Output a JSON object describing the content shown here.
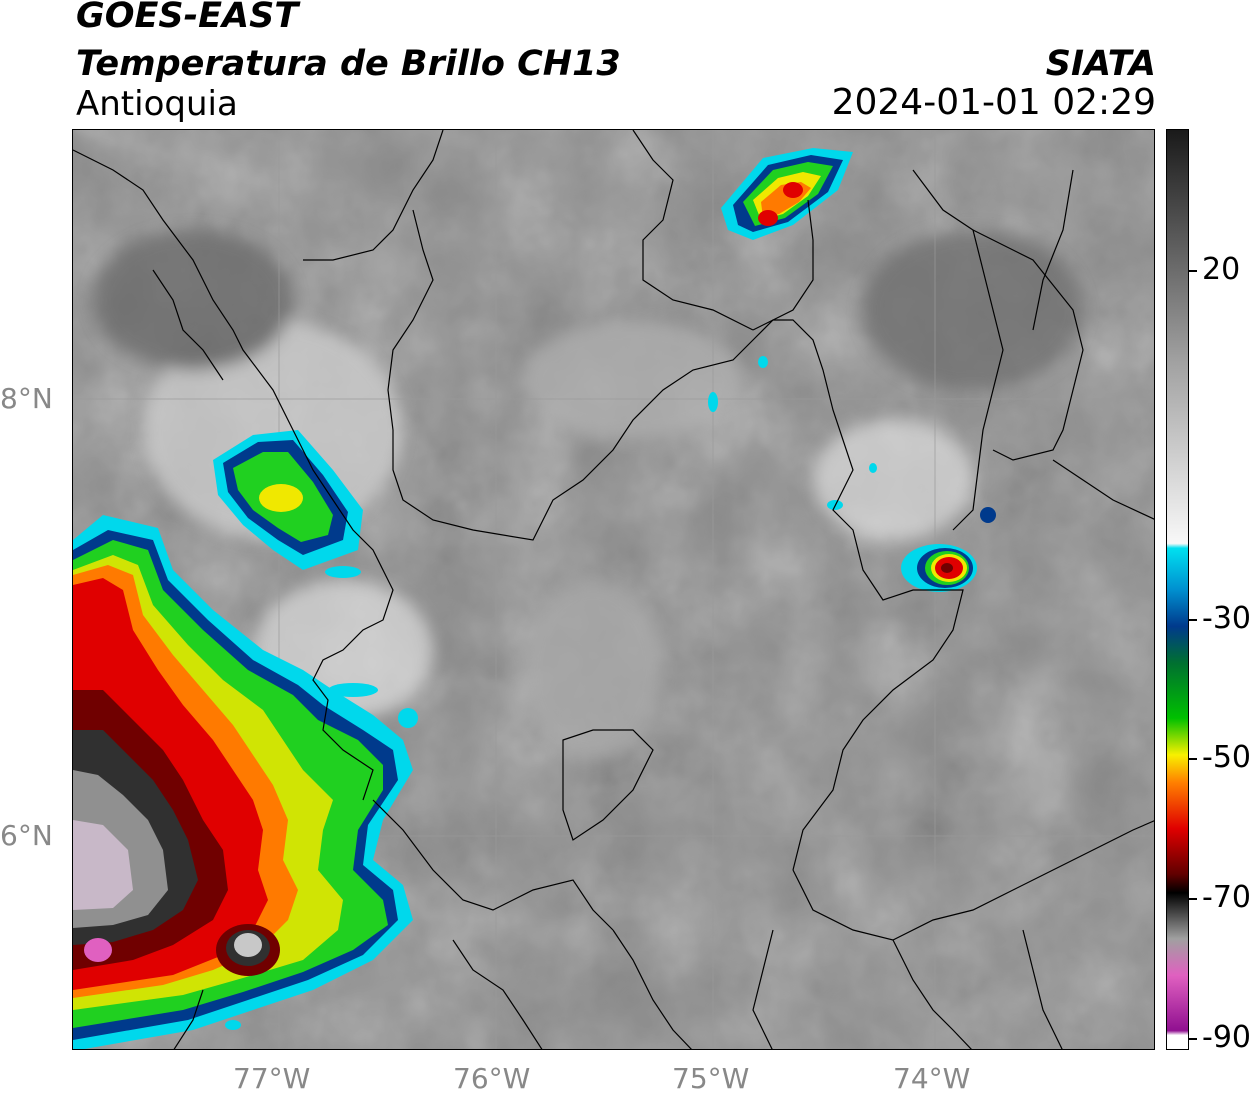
{
  "header": {
    "satellite": "GOES-EAST",
    "product": "Temperatura de Brillo CH13",
    "region": "Antioquia",
    "agency": "SIATA",
    "datetime": "2024-01-01 02:29"
  },
  "map": {
    "lon_range": [
      -77.95,
      -72.95
    ],
    "lat_range": [
      4.55,
      8.77
    ],
    "lon_ticks": [
      {
        "value": -77,
        "label": "77°W"
      },
      {
        "value": -76,
        "label": "76°W"
      },
      {
        "value": -75,
        "label": "75°W"
      },
      {
        "value": -74,
        "label": "74°W"
      }
    ],
    "lat_ticks": [
      {
        "value": 8,
        "label": "8°N"
      },
      {
        "value": 6,
        "label": "6°N"
      }
    ],
    "gridlines": true
  },
  "colorbar": {
    "range": [
      -90,
      30
    ],
    "ticks": [
      {
        "value": 20,
        "label": "20"
      },
      {
        "value": -30,
        "label": "-30"
      },
      {
        "value": -50,
        "label": "-50"
      },
      {
        "value": -70,
        "label": "-70"
      },
      {
        "value": -90,
        "label": "-90"
      }
    ],
    "colors": {
      "warm": "#1a1a1a",
      "white": "#f8f8f8",
      "cyan": "#00e0f0",
      "blue": "#003a8c",
      "green": "#00c000",
      "yellow": "#f8f000",
      "orange": "#ff8000",
      "red": "#e00000",
      "darkred": "#600000",
      "black": "#000000",
      "gray": "#a0a0a0",
      "pink": "#e060c0",
      "purple": "#901090"
    }
  }
}
